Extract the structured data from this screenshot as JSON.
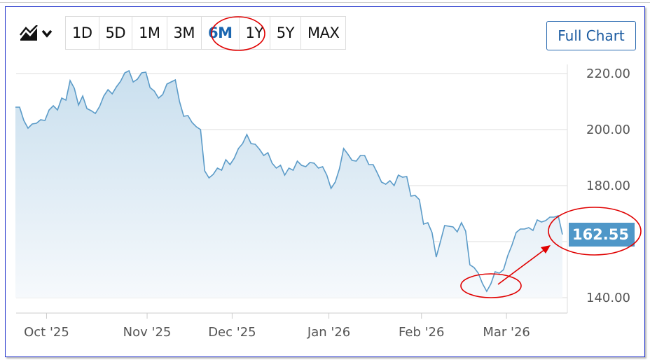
{
  "toolbar": {
    "chart_type_icon": "area-chart-icon",
    "ranges": [
      "1D",
      "5D",
      "1M",
      "3M",
      "6M",
      "1Y",
      "5Y",
      "MAX"
    ],
    "active_range": "6M",
    "full_chart_label": "Full Chart"
  },
  "colors": {
    "line": "#5b9bc8",
    "fill_top": "#c9dfee",
    "price_tag": "#4f97c8",
    "annotation": "#e00000",
    "accent": "#1a66b0"
  },
  "chart_data": {
    "type": "area",
    "ylim": [
      135,
      222
    ],
    "y_ticks": [
      {
        "value": 220,
        "label": "220.00"
      },
      {
        "value": 200,
        "label": "200.00"
      },
      {
        "value": 180,
        "label": "180.00"
      },
      {
        "value": 160,
        "label": ""
      },
      {
        "value": 140,
        "label": "140.00"
      }
    ],
    "x_ticks": [
      {
        "index": 7.4,
        "label": "Oct '25"
      },
      {
        "index": 31.3,
        "label": "Nov '25"
      },
      {
        "index": 51.5,
        "label": "Dec '25"
      },
      {
        "index": 74.5,
        "label": "Jan '26"
      },
      {
        "index": 96.5,
        "label": "Feb '26"
      },
      {
        "index": 116.7,
        "label": "Mar '26"
      }
    ],
    "grid": true,
    "last_price": "162.55",
    "values": [
      208.0,
      208.0,
      203.25,
      200.5,
      202.0,
      202.25,
      203.5,
      203.25,
      207.0,
      208.5,
      207.0,
      211.25,
      210.5,
      217.5,
      214.75,
      208.75,
      212.0,
      207.5,
      206.75,
      205.75,
      208.25,
      212.0,
      214.25,
      212.75,
      215.25,
      217.25,
      220.25,
      221.0,
      217.0,
      218.0,
      220.25,
      220.5,
      215.0,
      213.75,
      211.25,
      212.5,
      216.25,
      217.0,
      217.75,
      210.0,
      204.75,
      205.0,
      202.5,
      201.0,
      200.0,
      185.25,
      182.75,
      184.0,
      186.25,
      185.5,
      189.25,
      187.5,
      189.75,
      193.25,
      195.0,
      198.25,
      195.0,
      194.75,
      193.0,
      190.75,
      191.75,
      188.0,
      186.25,
      187.25,
      183.75,
      186.25,
      185.5,
      188.75,
      187.25,
      186.75,
      188.25,
      188.0,
      186.25,
      186.75,
      183.75,
      179.0,
      181.25,
      186.0,
      193.25,
      191.25,
      189.0,
      188.75,
      190.75,
      190.75,
      187.5,
      187.5,
      184.5,
      181.25,
      180.5,
      181.75,
      180.0,
      183.75,
      183.0,
      183.25,
      176.25,
      176.5,
      175.0,
      166.25,
      166.75,
      163.25,
      154.5,
      160.0,
      165.75,
      165.5,
      165.25,
      163.5,
      166.75,
      163.75,
      151.75,
      150.75,
      148.75,
      145.0,
      142.25,
      145.0,
      149.25,
      148.75,
      150.0,
      155.0,
      158.75,
      163.25,
      164.5,
      164.5,
      165.0,
      164.0,
      167.75,
      167.0,
      167.5,
      168.75,
      168.75,
      169.25,
      162.55
    ]
  }
}
